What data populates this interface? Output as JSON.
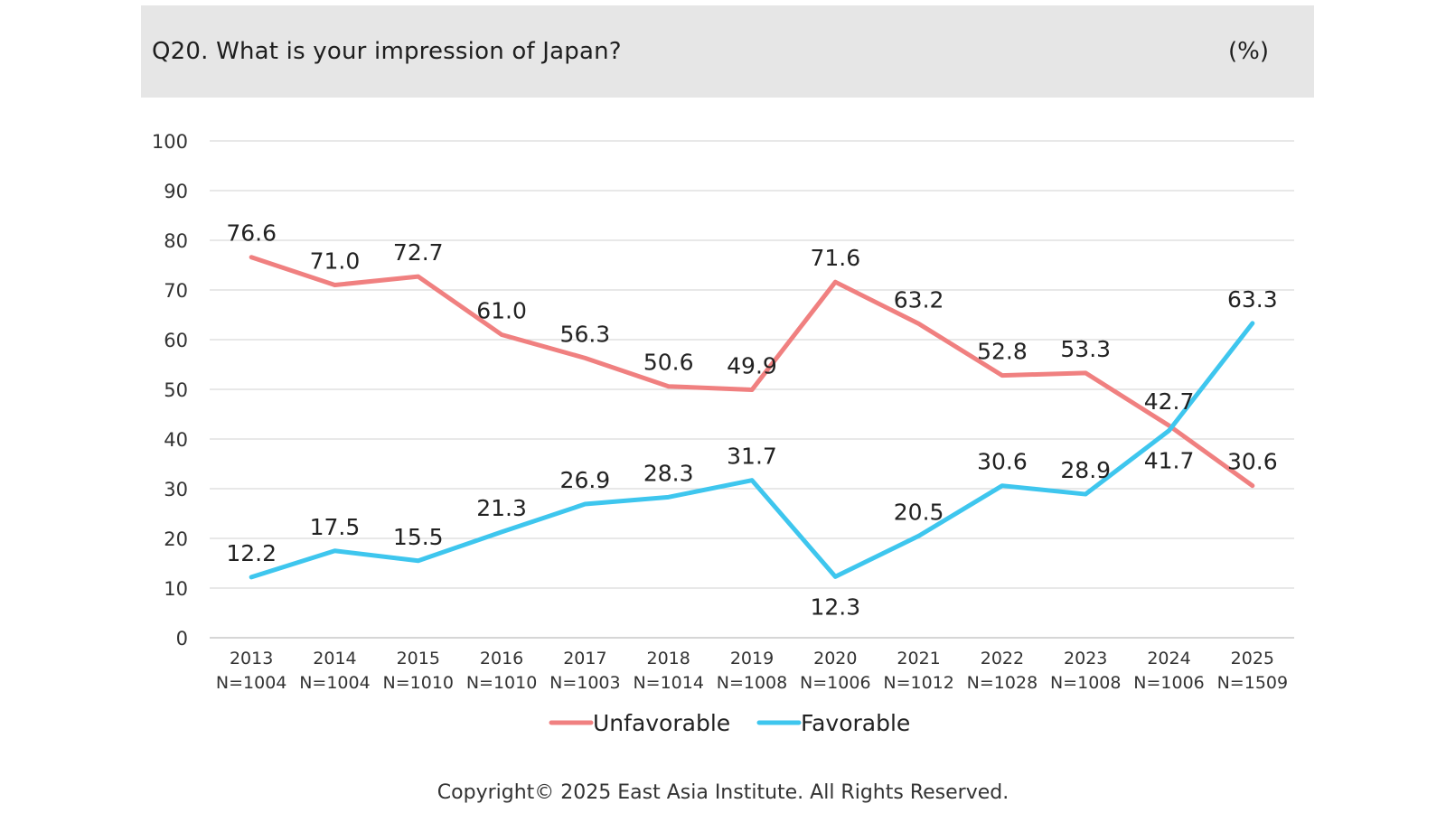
{
  "header": {
    "title": "Q20. What is your impression of Japan?",
    "unit": "(%)"
  },
  "footer": {
    "copyright": "Copyright© 2025 East Asia Institute. All Rights Reserved."
  },
  "chart_data": {
    "type": "line",
    "title": "Q20. What is your impression of Japan?",
    "xlabel": "",
    "ylabel": "",
    "ylim": [
      0,
      100
    ],
    "yticks": [
      0,
      10,
      20,
      30,
      40,
      50,
      60,
      70,
      80,
      90,
      100
    ],
    "grid": true,
    "legend_position": "bottom",
    "categories": [
      "2013",
      "2014",
      "2015",
      "2016",
      "2017",
      "2018",
      "2019",
      "2020",
      "2021",
      "2022",
      "2023",
      "2024",
      "2025"
    ],
    "sample_sizes": [
      "N=1004",
      "N=1004",
      "N=1010",
      "N=1010",
      "N=1003",
      "N=1014",
      "N=1008",
      "N=1006",
      "N=1012",
      "N=1028",
      "N=1008",
      "N=1006",
      "N=1509"
    ],
    "series": [
      {
        "name": "Unfavorable",
        "color": "#f08080",
        "values": [
          76.6,
          71.0,
          72.7,
          61.0,
          56.3,
          50.6,
          49.9,
          71.6,
          63.2,
          52.8,
          53.3,
          42.7,
          30.6
        ],
        "labels": [
          "76.6",
          "71.0",
          "72.7",
          "61.0",
          "56.3",
          "50.6",
          "49.9",
          "71.6",
          "63.2",
          "52.8",
          "53.3",
          "42.7",
          "30.6"
        ]
      },
      {
        "name": "Favorable",
        "color": "#3ec6ee",
        "values": [
          12.2,
          17.5,
          15.5,
          21.3,
          26.9,
          28.3,
          31.7,
          12.3,
          20.5,
          30.6,
          28.9,
          41.7,
          63.3
        ],
        "labels": [
          "12.2",
          "17.5",
          "15.5",
          "21.3",
          "26.9",
          "28.3",
          "31.7",
          "12.3",
          "20.5",
          "30.6",
          "28.9",
          "41.7",
          "63.3"
        ]
      }
    ]
  }
}
